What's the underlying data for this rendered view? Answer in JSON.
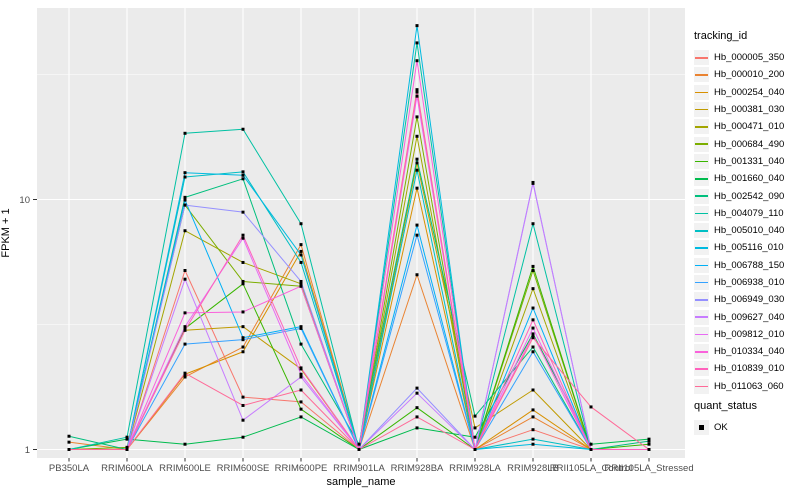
{
  "chart_data": {
    "type": "line",
    "title": "",
    "xlabel": "sample_name",
    "ylabel": "FPKM + 1",
    "y_scale": "log10",
    "y_ticks": [
      1,
      10
    ],
    "y_tick_labels": [
      "1",
      "10"
    ],
    "y_minor_breaks": [
      3.162,
      31.62
    ],
    "ylim": [
      0.92,
      58.0
    ],
    "grid": "on",
    "legend_position": "right",
    "marker": "filled-black-square",
    "categories": [
      "PB350LA",
      "RRIM600LA",
      "RRIM600LE",
      "RRIM600SE",
      "RRIM600PE",
      "RRIM901LA",
      "RRIM928BA",
      "RRIM928LA",
      "RRIM928LB",
      "RRII105LA_Control",
      "RRII105LA_Stressed"
    ],
    "legend": {
      "title": "tracking_id"
    },
    "quant_legend": {
      "title": "quant_status",
      "entries": [
        {
          "label": "OK"
        }
      ]
    },
    "series": [
      {
        "name": "Hb_000005_350",
        "color": "#F8766D",
        "values": [
          1.0,
          1.0,
          5.2,
          1.62,
          1.55,
          1.0,
          27.5,
          1.0,
          1.2,
          1.0,
          1.0
        ]
      },
      {
        "name": "Hb_000010_200",
        "color": "#EA8331",
        "values": [
          1.07,
          1.0,
          1.95,
          2.57,
          6.6,
          1.0,
          5.0,
          1.0,
          1.35,
          1.0,
          1.0
        ]
      },
      {
        "name": "Hb_000254_040",
        "color": "#D89000",
        "values": [
          1.0,
          1.0,
          2.0,
          2.46,
          6.2,
          1.0,
          11.1,
          1.0,
          1.44,
          1.0,
          1.0
        ]
      },
      {
        "name": "Hb_000381_030",
        "color": "#C09B00",
        "values": [
          1.0,
          1.0,
          3.0,
          3.1,
          2.1,
          1.0,
          14.0,
          1.22,
          1.73,
          1.0,
          1.0
        ]
      },
      {
        "name": "Hb_000471_010",
        "color": "#A3A500",
        "values": [
          1.0,
          1.0,
          7.5,
          5.6,
          4.6,
          1.0,
          17.9,
          1.0,
          4.4,
          1.0,
          1.0
        ]
      },
      {
        "name": "Hb_000684_490",
        "color": "#7CAE00",
        "values": [
          1.0,
          1.02,
          9.5,
          4.7,
          4.5,
          1.0,
          21.4,
          1.0,
          5.2,
          1.0,
          1.0
        ]
      },
      {
        "name": "Hb_001331_040",
        "color": "#39B600",
        "values": [
          1.0,
          1.0,
          3.05,
          4.6,
          1.45,
          1.0,
          1.47,
          1.0,
          5.4,
          1.0,
          1.05
        ]
      },
      {
        "name": "Hb_001660_040",
        "color": "#00BB4E",
        "values": [
          1.0,
          1.1,
          1.05,
          1.12,
          1.35,
          1.0,
          1.22,
          1.12,
          2.9,
          1.05,
          1.1
        ]
      },
      {
        "name": "Hb_002542_090",
        "color": "#00BF7D",
        "values": [
          1.13,
          1.0,
          10.2,
          12.1,
          2.64,
          1.05,
          14.5,
          1.36,
          2.57,
          1.0,
          1.08
        ]
      },
      {
        "name": "Hb_004079_110",
        "color": "#00C1A3",
        "values": [
          1.0,
          1.12,
          18.4,
          19.1,
          8.0,
          1.0,
          42.3,
          1.0,
          8.0,
          1.0,
          1.0
        ]
      },
      {
        "name": "Hb_005010_040",
        "color": "#00BFC4",
        "values": [
          1.0,
          1.0,
          12.3,
          12.9,
          5.6,
          1.0,
          13.1,
          1.0,
          1.1,
          1.0,
          1.0
        ]
      },
      {
        "name": "Hb_005116_010",
        "color": "#00BAE0",
        "values": [
          1.0,
          1.0,
          12.8,
          12.5,
          6.0,
          1.0,
          49.6,
          1.0,
          1.05,
          1.0,
          1.0
        ]
      },
      {
        "name": "Hb_006788_150",
        "color": "#00B0F6",
        "values": [
          1.0,
          1.0,
          9.95,
          2.8,
          3.1,
          1.0,
          7.9,
          1.0,
          3.68,
          1.0,
          1.0
        ]
      },
      {
        "name": "Hb_006938_010",
        "color": "#35A2FF",
        "values": [
          1.0,
          1.0,
          2.64,
          2.75,
          3.05,
          1.0,
          7.2,
          1.0,
          2.46,
          1.0,
          1.0
        ]
      },
      {
        "name": "Hb_006949_030",
        "color": "#9590FF",
        "values": [
          1.0,
          1.0,
          9.5,
          8.9,
          4.7,
          1.0,
          1.76,
          1.0,
          11.7,
          1.0,
          1.0
        ]
      },
      {
        "name": "Hb_009627_040",
        "color": "#C77CFF",
        "values": [
          1.0,
          1.0,
          4.8,
          1.31,
          1.95,
          1.0,
          1.68,
          1.0,
          11.6,
          1.0,
          1.0
        ]
      },
      {
        "name": "Hb_009812_010",
        "color": "#E76BF3",
        "values": [
          1.0,
          1.0,
          3.1,
          7.0,
          2.0,
          1.0,
          25.9,
          1.0,
          3.06,
          1.0,
          1.0
        ]
      },
      {
        "name": "Hb_010334_040",
        "color": "#FA62DB",
        "values": [
          1.0,
          1.0,
          3.52,
          3.55,
          4.5,
          1.0,
          35.9,
          1.0,
          2.87,
          1.0,
          1.0
        ]
      },
      {
        "name": "Hb_010839_010",
        "color": "#FF62BC",
        "values": [
          1.0,
          1.0,
          3.0,
          7.2,
          2.12,
          1.0,
          26.9,
          1.0,
          3.3,
          1.0,
          1.0
        ]
      },
      {
        "name": "Hb_011063_060",
        "color": "#FF6A98",
        "values": [
          1.0,
          1.0,
          2.02,
          1.5,
          1.73,
          1.0,
          1.35,
          1.0,
          2.8,
          1.48,
          1.0
        ]
      }
    ],
    "style": {
      "panel_bg": "#EBEBEB",
      "grid_color": "#FFFFFF",
      "legend_key_bg": "#F2F2F2",
      "axis_text_color": "#4D4D4D",
      "tick_color": "#333333",
      "marker_color": "#000000"
    }
  }
}
